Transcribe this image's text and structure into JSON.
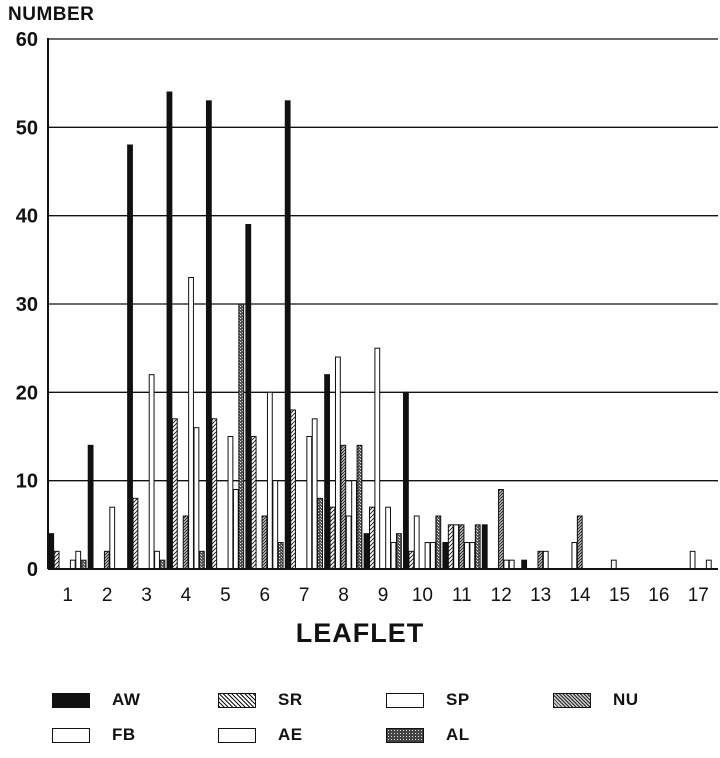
{
  "chart_data": {
    "type": "bar",
    "ylabel": "NUMBER",
    "xlabel": "LEAFLET",
    "ylim": [
      0,
      60
    ],
    "yticks": [
      0,
      10,
      20,
      30,
      40,
      50,
      60
    ],
    "grid": true,
    "legend_placement": "bottom",
    "categories": [
      "1",
      "2",
      "3",
      "4",
      "5",
      "6",
      "7",
      "8",
      "9",
      "10",
      "11",
      "12",
      "13",
      "14",
      "15",
      "16",
      "17"
    ],
    "series": [
      {
        "name": "AW",
        "color": "#111111",
        "pattern": "solid",
        "values": [
          4,
          14,
          48,
          54,
          53,
          39,
          53,
          22,
          4,
          20,
          3,
          5,
          1,
          0,
          0,
          0,
          0
        ]
      },
      {
        "name": "SR",
        "color": "#111111",
        "pattern": "diag-light",
        "values": [
          2,
          0,
          8,
          17,
          17,
          15,
          18,
          7,
          7,
          2,
          5,
          0,
          0,
          0,
          0,
          0,
          0
        ]
      },
      {
        "name": "SP",
        "color": "#111111",
        "pattern": "white",
        "values": [
          0,
          0,
          0,
          0,
          0,
          0,
          0,
          24,
          25,
          6,
          5,
          0,
          0,
          3,
          1,
          0,
          2
        ]
      },
      {
        "name": "NU",
        "color": "#111111",
        "pattern": "diag-dense",
        "values": [
          0,
          2,
          0,
          6,
          0,
          6,
          0,
          14,
          0,
          0,
          5,
          9,
          2,
          6,
          0,
          0,
          0
        ]
      },
      {
        "name": "FB",
        "color": "#111111",
        "pattern": "white",
        "values": [
          1,
          7,
          22,
          33,
          15,
          20,
          15,
          6,
          7,
          3,
          3,
          1,
          2,
          0,
          0,
          0,
          0
        ]
      },
      {
        "name": "AE",
        "color": "#111111",
        "pattern": "white",
        "values": [
          2,
          0,
          2,
          16,
          9,
          10,
          17,
          10,
          3,
          3,
          3,
          1,
          0,
          0,
          0,
          0,
          1
        ]
      },
      {
        "name": "AL",
        "color": "#111111",
        "pattern": "stipple",
        "values": [
          1,
          0,
          1,
          2,
          30,
          3,
          8,
          14,
          4,
          6,
          5,
          0,
          0,
          0,
          0,
          0,
          0
        ]
      }
    ]
  },
  "legend": {
    "items": [
      {
        "label": "AW",
        "pattern": "solid"
      },
      {
        "label": "SR",
        "pattern": "diag-light"
      },
      {
        "label": "SP",
        "pattern": "white"
      },
      {
        "label": "NU",
        "pattern": "diag-dense"
      },
      {
        "label": "FB",
        "pattern": "white"
      },
      {
        "label": "AE",
        "pattern": "white"
      },
      {
        "label": "AL",
        "pattern": "stipple"
      }
    ]
  }
}
